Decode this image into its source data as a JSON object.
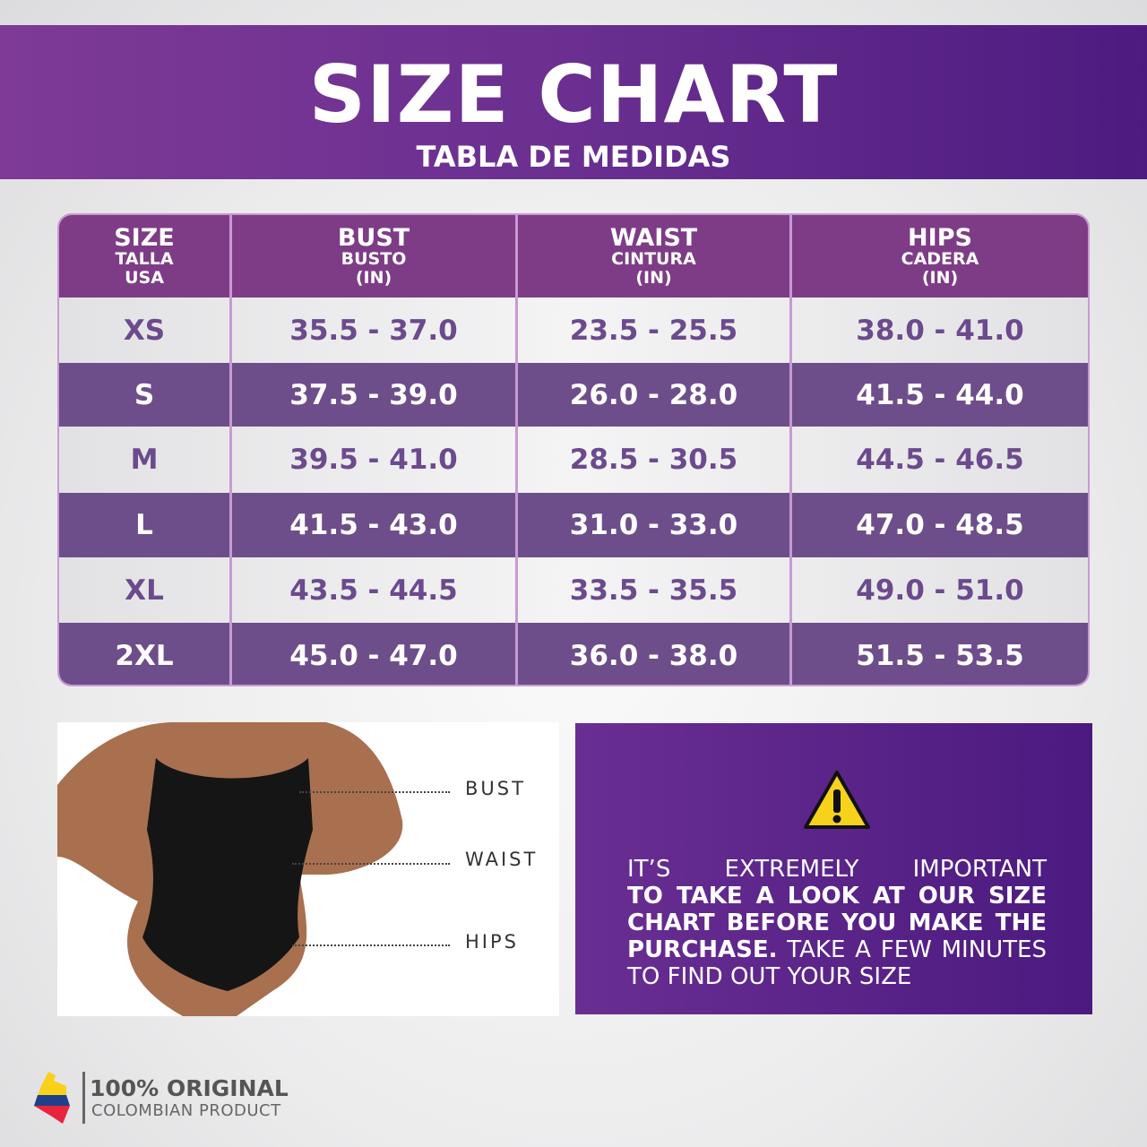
{
  "banner": {
    "title": "SIZE CHART",
    "subtitle": "TABLA DE MEDIDAS"
  },
  "table": {
    "headers": [
      {
        "main": "SIZE",
        "sub1": "TALLA",
        "sub2": "USA"
      },
      {
        "main": "BUST",
        "sub1": "BUSTO",
        "sub2": "(IN)"
      },
      {
        "main": "WAIST",
        "sub1": "CINTURA",
        "sub2": "(IN)"
      },
      {
        "main": "HIPS",
        "sub1": "CADERA",
        "sub2": "(IN)"
      }
    ],
    "rows": [
      [
        "XS",
        "35.5 - 37.0",
        "23.5 - 25.5",
        "38.0 - 41.0"
      ],
      [
        "S",
        "37.5 - 39.0",
        "26.0 - 28.0",
        "41.5 - 44.0"
      ],
      [
        "M",
        "39.5 - 41.0",
        "28.5 - 30.5",
        "44.5 - 46.5"
      ],
      [
        "L",
        "41.5 - 43.0",
        "31.0 - 33.0",
        "47.0 - 48.5"
      ],
      [
        "XL",
        "43.5 - 44.5",
        "33.5 - 35.5",
        "49.0 - 51.0"
      ],
      [
        "2XL",
        "45.0 - 47.0",
        "36.0 - 38.0",
        "51.5 - 53.5"
      ]
    ]
  },
  "figure": {
    "labels": {
      "bust": "BUST",
      "waist": "WAIST",
      "hips": "HIPS"
    }
  },
  "warning": {
    "icon": "warning-triangle-icon",
    "line1": "IT’S EXTREMELY IMPORTANT",
    "bold": "TO TAKE A LOOK AT OUR SIZE CHART BEFORE YOU MAKE THE PURCHASE.",
    "rest": " TAKE A FEW MINUTES TO FIND OUT YOUR SIZE"
  },
  "logo": {
    "title": "100% ORIGINAL",
    "subtitle": "COLOMBIAN PRODUCT",
    "flag_colors": [
      "#f9d01a",
      "#1f3f8a",
      "#e8243c"
    ]
  },
  "colors": {
    "purple_header": "#7e3c86",
    "purple_row": "#6d4e8a",
    "border": "#c89ad3"
  }
}
